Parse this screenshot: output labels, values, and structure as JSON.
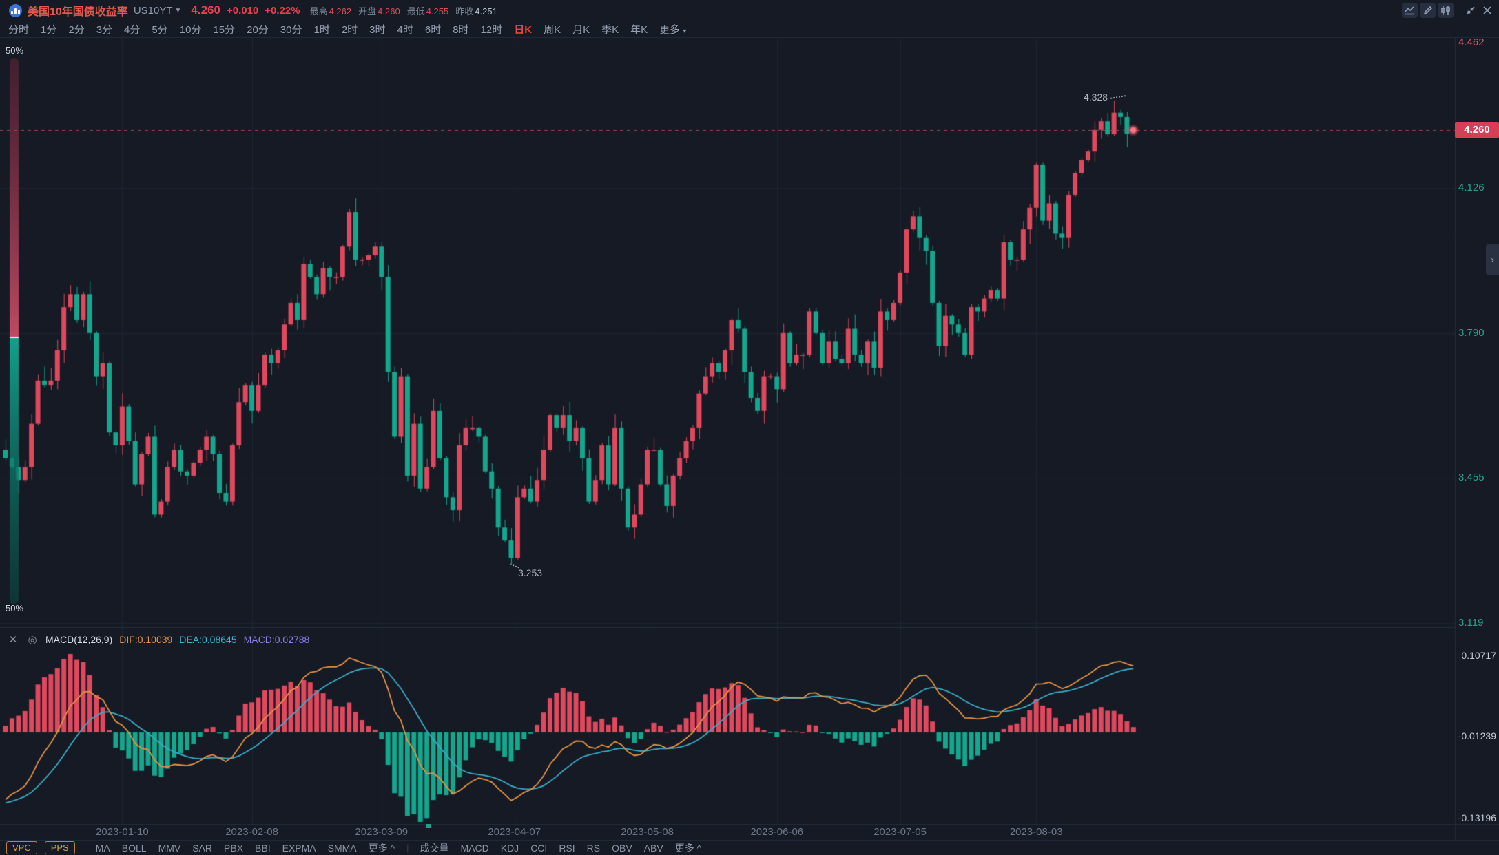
{
  "header": {
    "title": "美国10年国债收益率",
    "symbol": "US10YT",
    "price": "4.260",
    "change": "+0.010",
    "change_pct": "+0.22%",
    "stats": [
      {
        "label": "最高",
        "value": "4.262",
        "color": "#de4b57"
      },
      {
        "label": "开盘",
        "value": "4.260",
        "color": "#de4b57"
      },
      {
        "label": "最低",
        "value": "4.255",
        "color": "#de4b57"
      },
      {
        "label": "昨收",
        "value": "4.251",
        "color": "#b9c2cf"
      }
    ]
  },
  "timeframes": {
    "items": [
      "分时",
      "1分",
      "2分",
      "3分",
      "4分",
      "5分",
      "10分",
      "15分",
      "20分",
      "30分",
      "1时",
      "2时",
      "3时",
      "4时",
      "6时",
      "8时",
      "12时",
      "日K",
      "周K",
      "月K",
      "季K",
      "年K",
      "更多"
    ],
    "active": "日K",
    "more_caret": "▾"
  },
  "price_axis": {
    "labels": [
      {
        "text": "4.462",
        "color": "#d9566b"
      },
      {
        "text": "4.126",
        "color": "#28a08e"
      },
      {
        "text": "3.790",
        "color": "#28a08e"
      },
      {
        "text": "3.455",
        "color": "#28a08e"
      },
      {
        "text": "3.119",
        "color": "#28a08e"
      }
    ],
    "tag": "4.260",
    "chevron": "›"
  },
  "macd_header": {
    "close_icon": "✕",
    "settings_icon": "◎",
    "name": "MACD(12,26,9)",
    "dif": "DIF:0.10039",
    "dea": "DEA:0.08645",
    "macd": "MACD:0.02788"
  },
  "macd_axis": [
    "0.10717",
    "-0.01239",
    "-0.13196"
  ],
  "annotations": {
    "high": "4.328",
    "low": "3.253",
    "vpc_top": "50%",
    "vpc_bottom": "50%"
  },
  "footer": {
    "buttons": [
      "VPC",
      "PPS"
    ],
    "overlays": [
      "MA",
      "BOLL",
      "MMV",
      "SAR",
      "PBX",
      "BBI",
      "EXPMA",
      "SMMA",
      "更多 ^"
    ],
    "divider": "|",
    "indicators": [
      "成交量",
      "MACD",
      "KDJ",
      "CCI",
      "RSI",
      "RS",
      "OBV",
      "ABV",
      "更多 ^"
    ]
  },
  "colors": {
    "up": "#e0485e",
    "down": "#14a78e",
    "grid": "#1d2432",
    "border": "#242c3c",
    "dashed": "#a04458",
    "dif_line": "#e79444",
    "dea_line": "#3cacc9",
    "vpc_red": "#c04a63",
    "vpc_green": "#12a18c"
  },
  "chart_data": {
    "type": "candlestick+macd",
    "symbol": "US10YT",
    "timeframe": "日K",
    "title": "美国10年国债收益率",
    "y_axis_ticks": [
      4.462,
      4.126,
      3.79,
      3.455,
      3.119
    ],
    "macd_axis_ticks": [
      0.10717,
      -0.01239,
      -0.13196
    ],
    "macd_params": [
      12,
      26,
      9
    ],
    "macd_values": {
      "dif": 0.10039,
      "dea": 0.08645,
      "macd": 0.02788
    },
    "last_price": 4.26,
    "prev_close": 4.251,
    "open": 4.26,
    "high": 4.262,
    "low": 4.255,
    "annotated_high": 4.328,
    "annotated_low": 3.253,
    "vpc_split_price": 3.78,
    "closes": [
      3.5,
      3.48,
      3.45,
      3.48,
      3.58,
      3.68,
      3.67,
      3.68,
      3.75,
      3.85,
      3.88,
      3.82,
      3.88,
      3.79,
      3.69,
      3.72,
      3.56,
      3.53,
      3.62,
      3.54,
      3.44,
      3.51,
      3.55,
      3.37,
      3.4,
      3.48,
      3.52,
      3.47,
      3.46,
      3.49,
      3.52,
      3.55,
      3.51,
      3.42,
      3.4,
      3.53,
      3.63,
      3.67,
      3.61,
      3.67,
      3.74,
      3.72,
      3.75,
      3.81,
      3.86,
      3.82,
      3.95,
      3.92,
      3.88,
      3.94,
      3.92,
      3.92,
      3.99,
      4.07,
      3.96,
      3.96,
      3.97,
      3.99,
      3.92,
      3.7,
      3.55,
      3.69,
      3.46,
      3.58,
      3.43,
      3.48,
      3.61,
      3.5,
      3.41,
      3.38,
      3.53,
      3.57,
      3.57,
      3.55,
      3.47,
      3.43,
      3.34,
      3.31,
      3.27,
      3.41,
      3.43,
      3.4,
      3.45,
      3.52,
      3.6,
      3.57,
      3.6,
      3.54,
      3.57,
      3.5,
      3.4,
      3.45,
      3.53,
      3.44,
      3.57,
      3.43,
      3.34,
      3.37,
      3.44,
      3.52,
      3.52,
      3.44,
      3.39,
      3.46,
      3.5,
      3.54,
      3.57,
      3.65,
      3.69,
      3.72,
      3.7,
      3.75,
      3.82,
      3.8,
      3.7,
      3.64,
      3.61,
      3.69,
      3.69,
      3.66,
      3.79,
      3.72,
      3.74,
      3.74,
      3.84,
      3.79,
      3.72,
      3.77,
      3.73,
      3.72,
      3.8,
      3.74,
      3.72,
      3.77,
      3.71,
      3.84,
      3.82,
      3.86,
      3.93,
      4.03,
      4.06,
      4.01,
      3.98,
      3.86,
      3.76,
      3.83,
      3.81,
      3.79,
      3.74,
      3.85,
      3.84,
      3.87,
      3.89,
      3.87,
      4.0,
      3.96,
      3.96,
      4.03,
      4.08,
      4.18,
      4.05,
      4.09,
      4.02,
      4.01,
      4.11,
      4.16,
      4.19,
      4.21,
      4.26,
      4.28,
      4.25,
      4.3,
      4.29,
      4.251,
      4.26
    ],
    "specials": [
      {
        "idx": 78,
        "low": 3.253
      },
      {
        "idx": 171,
        "high": 4.328
      },
      {
        "idx": 173,
        "low": 4.22
      },
      {
        "idx": 174,
        "open": 4.26,
        "high": 4.262,
        "low": 4.255,
        "close": 4.26
      }
    ],
    "dates": [
      {
        "label": "2023-01-10",
        "idx": 18
      },
      {
        "label": "2023-02-08",
        "idx": 38
      },
      {
        "label": "2023-03-09",
        "idx": 58
      },
      {
        "label": "2023-04-07",
        "idx": 78.5
      },
      {
        "label": "2023-05-08",
        "idx": 99
      },
      {
        "label": "2023-06-06",
        "idx": 119
      },
      {
        "label": "2023-07-05",
        "idx": 138
      },
      {
        "label": "2023-08-03",
        "idx": 159
      }
    ]
  }
}
